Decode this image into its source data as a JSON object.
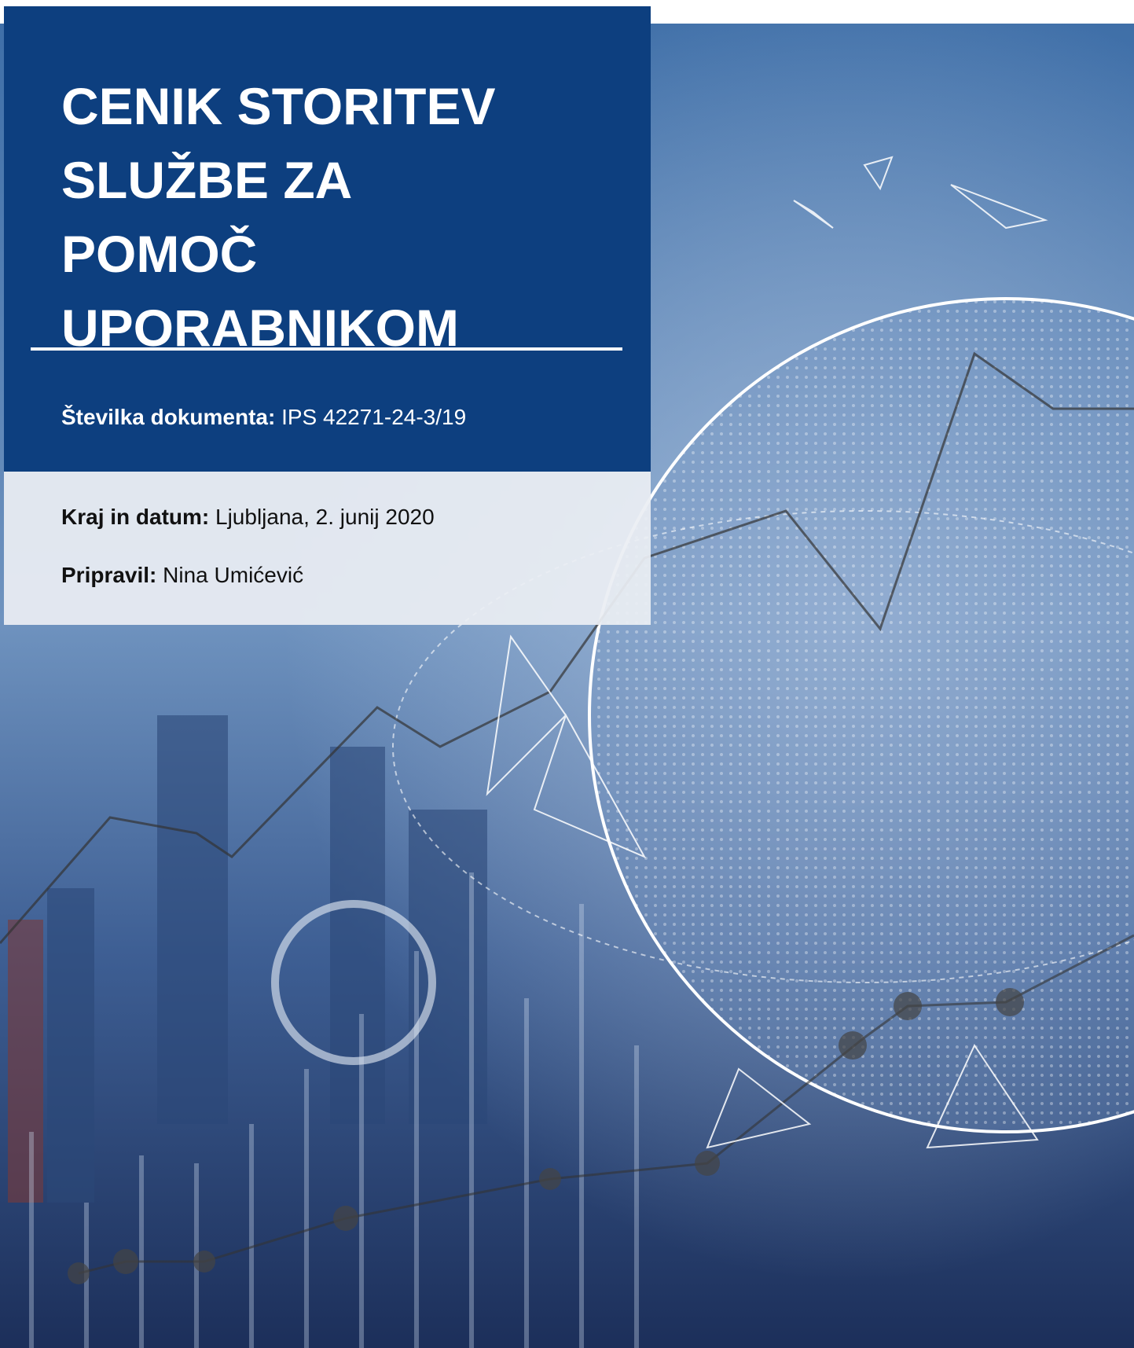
{
  "cover": {
    "title_lines": [
      "CENIK STORITEV",
      "SLUŽBE ZA",
      "POMOČ",
      "UPORABNIKOM"
    ],
    "document_number": {
      "label": "Številka dokumenta:",
      "value": "IPS 42271-24-3/19"
    },
    "place_and_date": {
      "label": "Kraj in datum:",
      "value": "Ljubljana, 2. junij 2020"
    },
    "prepared_by": {
      "label": "Pripravil:",
      "value": "Nina Umićević"
    }
  }
}
